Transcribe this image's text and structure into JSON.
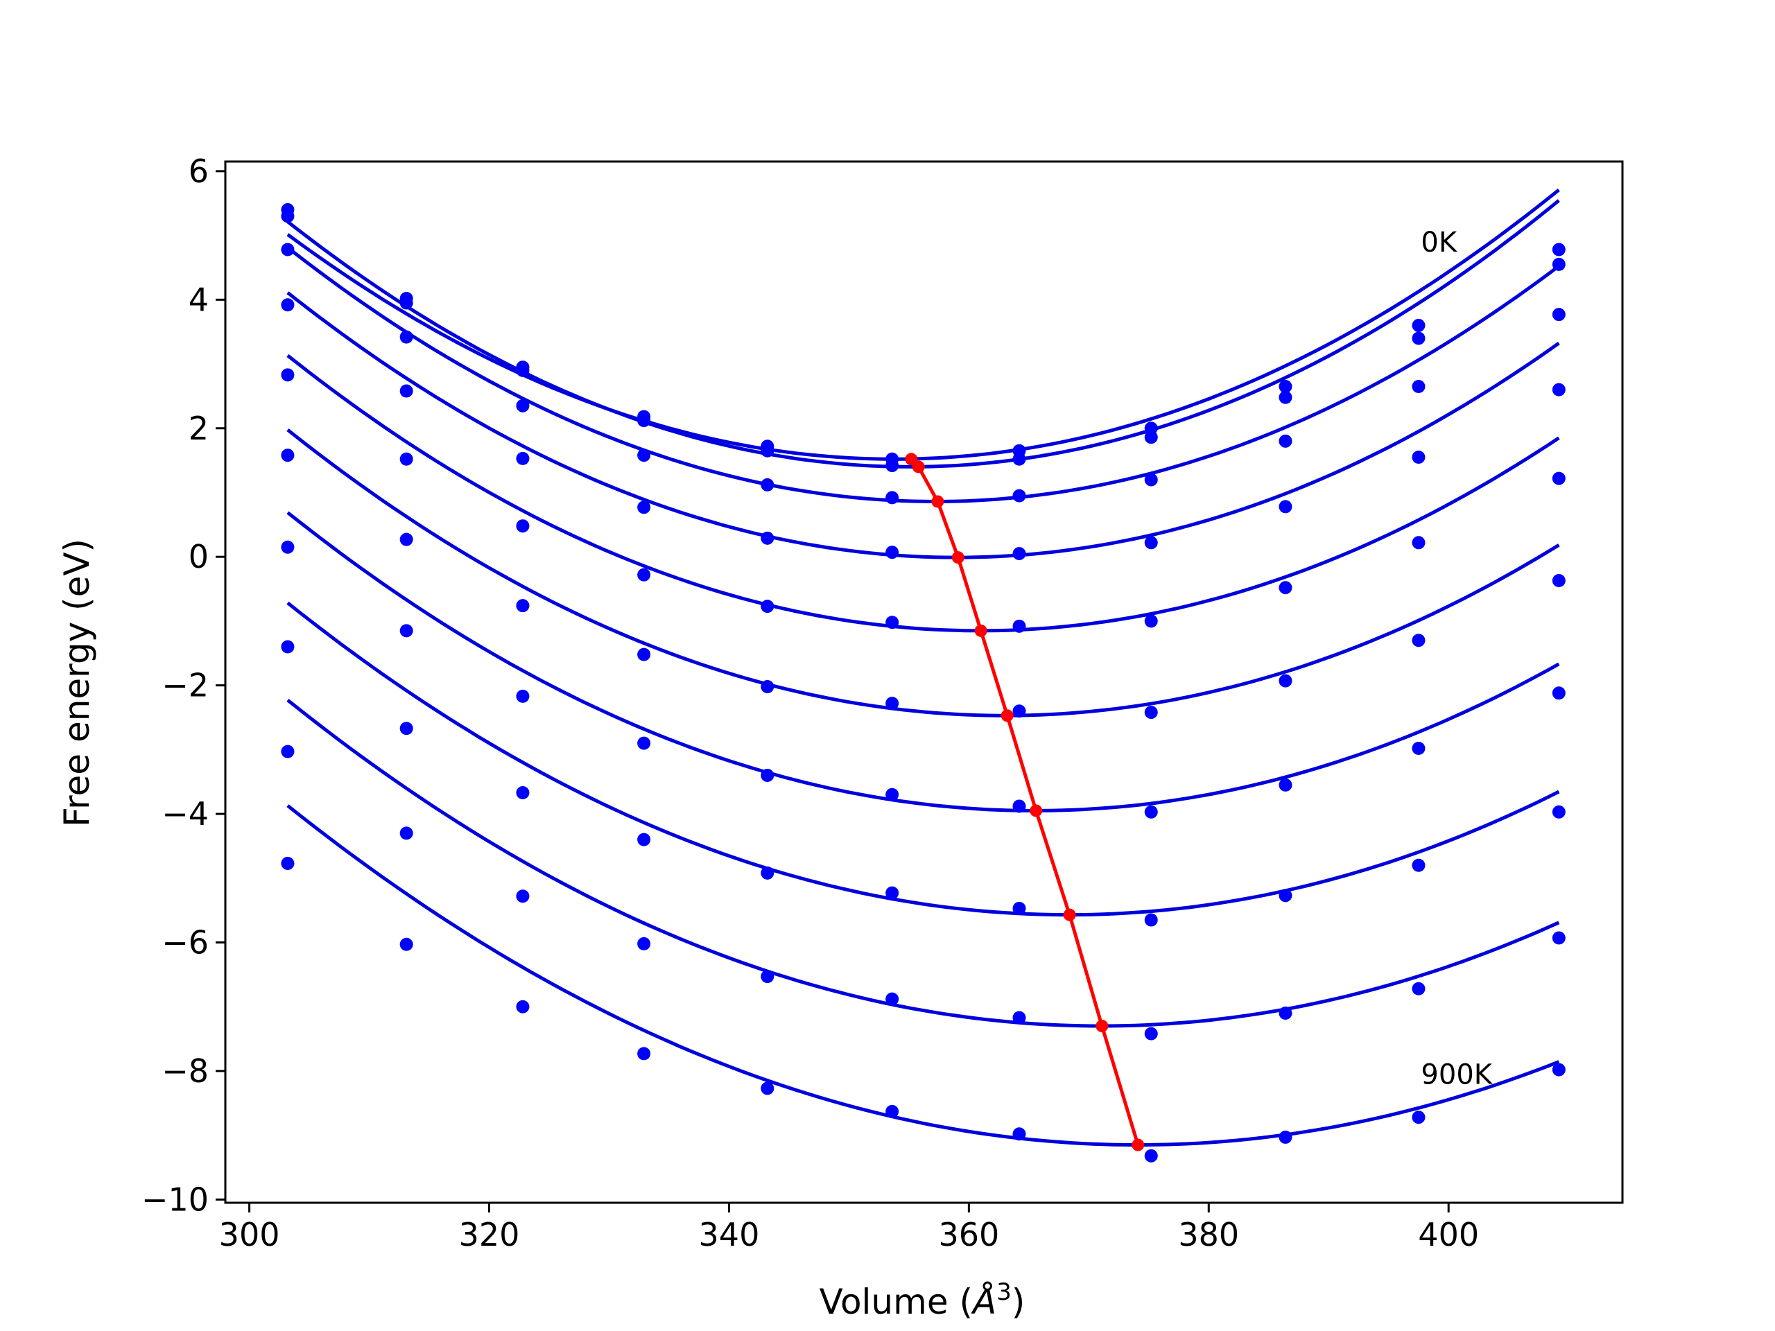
{
  "chart_data": {
    "type": "line",
    "title": "",
    "xlabel": "Volume (",
    "xlabel_unit_base": "Å",
    "xlabel_unit_exp": "3",
    "xlabel_suffix": ")",
    "ylabel": "Free energy (eV)",
    "xlim": [
      298,
      414.5
    ],
    "ylim": [
      -10.05,
      6.15
    ],
    "xticks": [
      300,
      320,
      340,
      360,
      380,
      400
    ],
    "yticks": [
      6,
      4,
      2,
      0,
      -2,
      -4,
      -6,
      -8,
      -10
    ],
    "ytick_labels": [
      "6",
      "4",
      "2",
      "0",
      "−2",
      "−4",
      "−6",
      "−8",
      "−10"
    ],
    "grid": false,
    "colors": {
      "fit": "#0000dd",
      "points": "#0000ff",
      "minima": "#ff0000",
      "axes": "#000000"
    },
    "volumes": [
      303.2,
      313.1,
      322.8,
      332.9,
      343.2,
      353.6,
      364.2,
      375.2,
      386.4,
      397.5,
      409.2
    ],
    "series": [
      {
        "fit": {
          "vmin": 353.8,
          "fmin": 1.52,
          "a": 0.001365
        },
        "points": [
          5.4,
          4.02,
          2.95,
          2.18,
          1.72,
          1.52,
          1.65,
          2.0,
          2.65,
          3.6,
          4.78
        ]
      },
      {
        "fit": {
          "vmin": 355.1,
          "fmin": 1.4,
          "a": 0.001416
        },
        "points": [
          5.3,
          3.95,
          2.9,
          2.12,
          1.65,
          1.42,
          1.52,
          1.86,
          2.48,
          3.4,
          4.55
        ]
      },
      {
        "fit": {
          "vmin": 357.2,
          "fmin": 0.86,
          "a": 0.001355
        },
        "points": [
          4.78,
          3.42,
          2.35,
          1.58,
          1.12,
          0.92,
          0.95,
          1.2,
          1.8,
          2.65,
          3.77
        ]
      },
      {
        "fit": {
          "vmin": 359.0,
          "fmin": -0.01,
          "a": 0.001323
        },
        "points": [
          3.92,
          2.58,
          1.53,
          0.77,
          0.29,
          0.07,
          0.05,
          0.22,
          0.78,
          1.55,
          2.6
        ]
      },
      {
        "fit": {
          "vmin": 360.9,
          "fmin": -1.15,
          "a": 0.001286
        },
        "points": [
          2.83,
          1.52,
          0.48,
          -0.28,
          -0.77,
          -1.02,
          -1.08,
          -1.0,
          -0.48,
          0.22,
          1.22
        ]
      },
      {
        "fit": {
          "vmin": 363.0,
          "fmin": -2.47,
          "a": 0.001243
        },
        "points": [
          1.58,
          0.27,
          -0.76,
          -1.52,
          -2.02,
          -2.28,
          -2.4,
          -2.42,
          -1.93,
          -1.3,
          -0.37
        ]
      },
      {
        "fit": {
          "vmin": 365.5,
          "fmin": -3.95,
          "a": 0.001195
        },
        "points": [
          0.15,
          -1.15,
          -2.17,
          -2.9,
          -3.4,
          -3.7,
          -3.88,
          -3.97,
          -3.55,
          -2.98,
          -2.12
        ]
      },
      {
        "fit": {
          "vmin": 368.3,
          "fmin": -5.57,
          "a": 0.001145
        },
        "points": [
          -1.4,
          -2.67,
          -3.67,
          -4.4,
          -4.92,
          -5.23,
          -5.47,
          -5.65,
          -5.27,
          -4.8,
          -3.97
        ]
      },
      {
        "fit": {
          "vmin": 371.0,
          "fmin": -7.3,
          "a": 0.001103
        },
        "points": [
          -3.03,
          -4.3,
          -5.28,
          -6.02,
          -6.53,
          -6.88,
          -7.17,
          -7.42,
          -7.1,
          -6.72,
          -5.93
        ]
      },
      {
        "fit": {
          "vmin": 374.1,
          "fmin": -9.15,
          "a": 0.00105
        },
        "points": [
          -4.77,
          -6.03,
          -7.0,
          -7.73,
          -8.27,
          -8.63,
          -8.98,
          -9.32,
          -9.03,
          -8.72,
          -7.98
        ]
      }
    ],
    "minima_line": [
      [
        355.2,
        1.52
      ],
      [
        355.8,
        1.4
      ],
      [
        357.4,
        0.86
      ],
      [
        359.1,
        -0.01
      ],
      [
        361.0,
        -1.15
      ],
      [
        363.2,
        -2.47
      ],
      [
        365.6,
        -3.95
      ],
      [
        368.4,
        -5.57
      ],
      [
        371.1,
        -7.3
      ],
      [
        374.1,
        -9.15
      ]
    ],
    "annotations": [
      {
        "text": "0K",
        "x": 397.7,
        "y": 4.9
      },
      {
        "text": "900K",
        "x": 397.7,
        "y": -8.05
      }
    ]
  }
}
